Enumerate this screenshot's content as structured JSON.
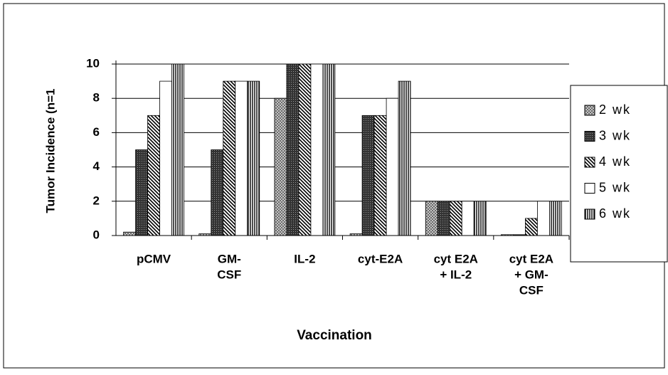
{
  "chart_data": {
    "type": "bar",
    "ylabel": "Tumor Incidence (n=1",
    "xlabel": "Vaccination",
    "categories": [
      [
        "pCMV"
      ],
      [
        "GM-",
        "CSF"
      ],
      [
        "IL-2"
      ],
      [
        "cyt-E2A"
      ],
      [
        "cyt E2A",
        "+ IL-2"
      ],
      [
        "cyt E2A",
        "+ GM-",
        "CSF"
      ]
    ],
    "series": [
      {
        "name": "2 wk",
        "color": "#bbbbbb",
        "pattern": "crosshatch",
        "values": [
          0.2,
          0.1,
          8,
          0.1,
          2,
          0.05
        ]
      },
      {
        "name": "3 wk",
        "color": "#444444",
        "pattern": "speckle",
        "values": [
          5,
          5,
          10,
          7,
          2,
          0.05
        ]
      },
      {
        "name": "4 wk",
        "color": "#555555",
        "pattern": "diagonal",
        "values": [
          7,
          9,
          10,
          7,
          2,
          1
        ]
      },
      {
        "name": "5 wk",
        "color": "#ffffff",
        "pattern": "solid",
        "values": [
          9,
          9,
          10,
          8,
          2,
          2
        ]
      },
      {
        "name": "6 wk",
        "color": "#777777",
        "pattern": "vertical",
        "values": [
          10,
          9,
          10,
          9,
          2,
          2
        ]
      }
    ],
    "ylim": [
      0,
      10
    ],
    "yticks": [
      0,
      2,
      4,
      6,
      8,
      10
    ],
    "grid": true,
    "legend": "right"
  }
}
